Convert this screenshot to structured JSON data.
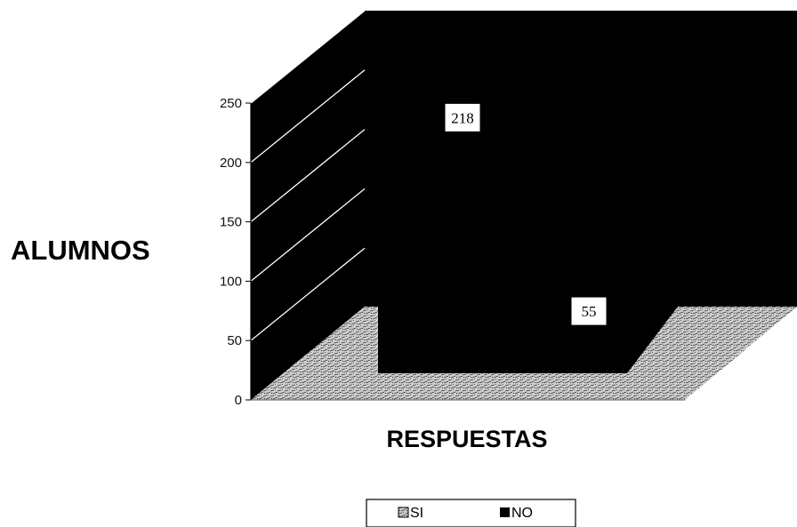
{
  "chart_data": {
    "type": "bar",
    "title": "",
    "xlabel": "RESPUESTAS",
    "ylabel": "ALUMNOS",
    "categories": [
      ""
    ],
    "series": [
      {
        "name": "SI",
        "values": [
          218
        ],
        "color": "#000000",
        "pattern": "speckled-gray"
      },
      {
        "name": "NO",
        "values": [
          55
        ],
        "color": "#000000",
        "pattern": "solid-black"
      }
    ],
    "ylim": [
      0,
      250
    ],
    "yticks": [
      "0",
      "50",
      "100",
      "150",
      "200",
      "250"
    ],
    "data_labels": [
      "218",
      "55"
    ],
    "grid": true,
    "legend_position": "bottom",
    "style": "3d"
  }
}
